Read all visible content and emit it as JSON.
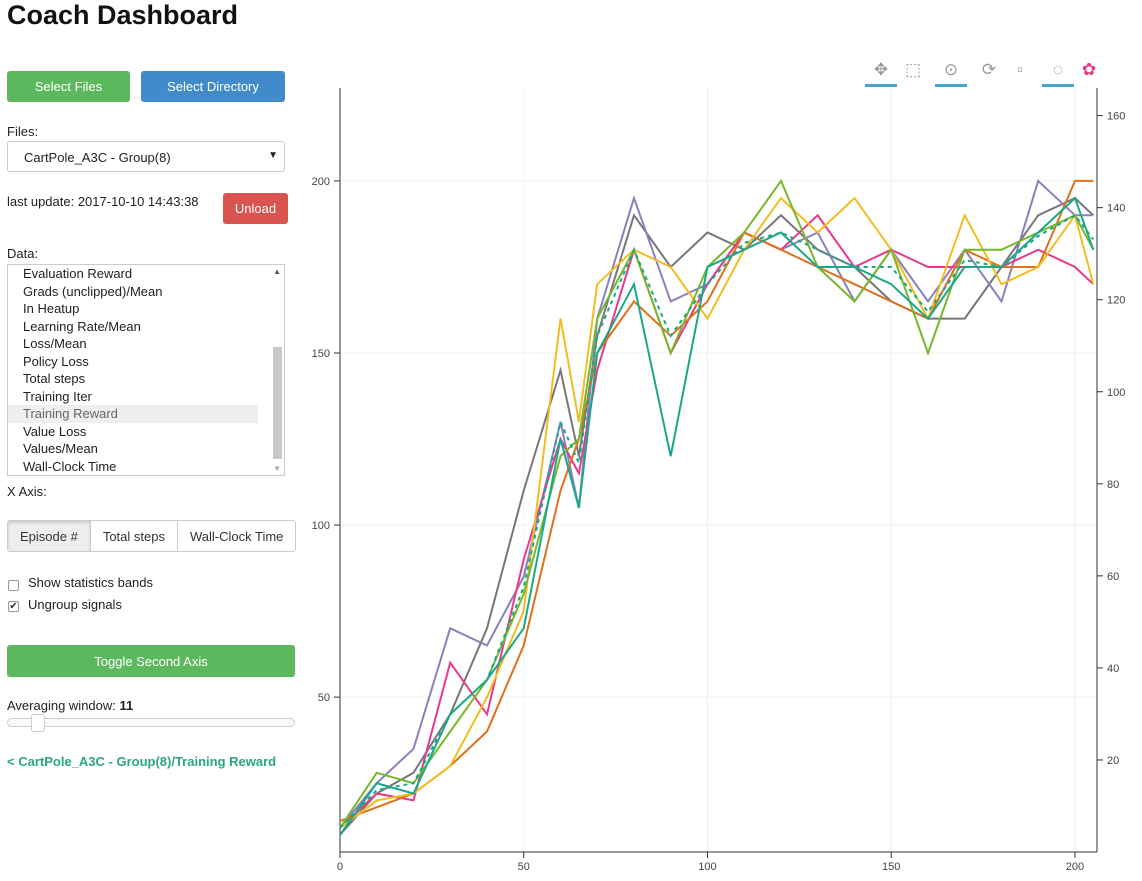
{
  "title": "Coach Dashboard",
  "buttons": {
    "select_files": "Select Files",
    "select_directory": "Select Directory",
    "unload": "Unload",
    "toggle_axis": "Toggle Second Axis"
  },
  "files": {
    "label": "Files:",
    "selected": "CartPole_A3C - Group(8)"
  },
  "last_update": "last update: 2017-10-10 14:43:38",
  "data": {
    "label": "Data:",
    "items": [
      "Evaluation Reward",
      "Grads (unclipped)/Mean",
      "In Heatup",
      "Learning Rate/Mean",
      "Loss/Mean",
      "Policy Loss",
      "Total steps",
      "Training Iter",
      "Training Reward",
      "Value Loss",
      "Values/Mean",
      "Wall-Clock Time"
    ],
    "selected": "Training Reward"
  },
  "x_axis": {
    "label": "X Axis:",
    "options": [
      "Episode #",
      "Total steps",
      "Wall-Clock Time"
    ],
    "selected": "Episode #"
  },
  "checkboxes": [
    {
      "label": "Show statistics bands",
      "checked": false
    },
    {
      "label": "Ungroup signals",
      "checked": true
    }
  ],
  "averaging": {
    "label": "Averaging window:",
    "value": "11"
  },
  "signal_link": "< CartPole_A3C - Group(8)/Training Reward",
  "colors": {
    "green": "#5cb85c",
    "blue": "#428bca",
    "red": "#d9534f",
    "link": "#2aa879"
  },
  "toolbar": [
    "pan-icon",
    "box-zoom-icon",
    "wheel-zoom-icon",
    "reset-icon",
    "save-icon",
    "hover-icon",
    "bokeh-logo"
  ],
  "chart_data": {
    "type": "line",
    "xlim": [
      0,
      206
    ],
    "ylim": [
      5,
      227
    ],
    "y2lim": [
      0,
      166
    ],
    "x_ticks": [
      0,
      50,
      100,
      150,
      200
    ],
    "y_ticks": [
      50,
      100,
      150,
      200
    ],
    "y2_ticks": [
      20,
      40,
      60,
      80,
      100,
      120,
      140,
      160
    ],
    "grid": true,
    "x": [
      0,
      10,
      20,
      30,
      40,
      50,
      60,
      65,
      70,
      80,
      90,
      100,
      110,
      120,
      130,
      140,
      150,
      160,
      170,
      180,
      190,
      200,
      205
    ],
    "series": [
      {
        "color": "#777777",
        "values": [
          10,
          22,
          28,
          45,
          70,
          110,
          145,
          120,
          155,
          190,
          175,
          185,
          180,
          190,
          180,
          175,
          165,
          160,
          160,
          175,
          190,
          195,
          190
        ]
      },
      {
        "color": "#8c7fbf",
        "values": [
          12,
          25,
          35,
          70,
          65,
          85,
          130,
          105,
          160,
          195,
          165,
          170,
          185,
          180,
          185,
          165,
          180,
          165,
          180,
          165,
          200,
          190,
          190
        ]
      },
      {
        "color": "#e8398a",
        "values": [
          12,
          22,
          20,
          60,
          45,
          90,
          125,
          115,
          145,
          180,
          150,
          170,
          185,
          180,
          190,
          175,
          180,
          175,
          175,
          175,
          180,
          175,
          170
        ]
      },
      {
        "color": "#e0701a",
        "values": [
          14,
          18,
          22,
          30,
          40,
          65,
          110,
          125,
          150,
          165,
          155,
          165,
          185,
          180,
          175,
          170,
          165,
          160,
          180,
          175,
          175,
          200,
          200
        ]
      },
      {
        "color": "#f0be1e",
        "values": [
          12,
          20,
          22,
          30,
          50,
          75,
          160,
          130,
          170,
          180,
          175,
          160,
          180,
          195,
          185,
          195,
          180,
          160,
          190,
          170,
          175,
          190,
          170
        ]
      },
      {
        "color": "#77b82a",
        "values": [
          12,
          28,
          25,
          40,
          55,
          80,
          120,
          125,
          160,
          180,
          150,
          175,
          185,
          200,
          175,
          165,
          180,
          150,
          180,
          180,
          185,
          190,
          180
        ]
      },
      {
        "color": "#1aa88a",
        "values": [
          10,
          25,
          22,
          45,
          55,
          70,
          125,
          105,
          150,
          170,
          120,
          175,
          180,
          185,
          175,
          175,
          170,
          160,
          175,
          175,
          185,
          195,
          180
        ]
      },
      {
        "color": "#1aa88a",
        "dashed": true,
        "values": [
          12,
          23,
          25,
          45,
          55,
          82,
          130,
          118,
          155,
          180,
          155,
          170,
          182,
          185,
          180,
          175,
          175,
          162,
          177,
          175,
          184,
          190,
          183
        ]
      }
    ]
  }
}
